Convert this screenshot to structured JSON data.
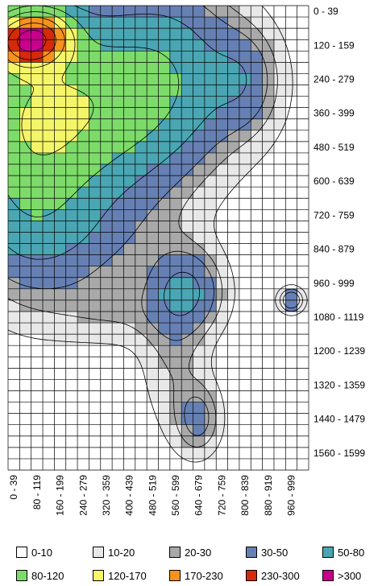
{
  "chart_data": {
    "type": "heatmap",
    "title": "",
    "xlabel": "",
    "ylabel": "",
    "x_tick_labels": [
      "0 - 39",
      "80 - 119",
      "160 - 199",
      "240 - 279",
      "320 - 359",
      "400 - 439",
      "480 - 519",
      "560 - 599",
      "640 - 679",
      "720 - 759",
      "800 - 839",
      "880 - 919",
      "960 - 999"
    ],
    "y_tick_labels": [
      "0 - 39",
      "120 - 159",
      "240 - 279",
      "360 - 399",
      "480 - 519",
      "600 - 639",
      "720 - 759",
      "840 - 879",
      "960 - 999",
      "1080 - 1119",
      "1200 - 1239",
      "1320 - 1359",
      "1440 - 1479",
      "1560 - 1599"
    ],
    "x_range": [
      0,
      1039
    ],
    "y_range": [
      0,
      1639
    ],
    "bin_size": 40,
    "grid": true,
    "legend_position": "bottom",
    "legend": [
      {
        "label": "0-10",
        "min": 0,
        "max": 10,
        "color": "#ffffff"
      },
      {
        "label": "10-20",
        "min": 10,
        "max": 20,
        "color": "#e8e8e8"
      },
      {
        "label": "20-30",
        "min": 20,
        "max": 30,
        "color": "#a9a9a9"
      },
      {
        "label": "30-50",
        "min": 30,
        "max": 50,
        "color": "#6680b3"
      },
      {
        "label": "50-80",
        "min": 50,
        "max": 80,
        "color": "#4aa6b3"
      },
      {
        "label": "80-120",
        "min": 80,
        "max": 120,
        "color": "#7ddb6a"
      },
      {
        "label": "120-170",
        "min": 120,
        "max": 170,
        "color": "#f5f56a"
      },
      {
        "label": "170-230",
        "min": 170,
        "max": 230,
        "color": "#f7921e"
      },
      {
        "label": "230-300",
        "min": 230,
        "max": 300,
        "color": "#d42a0a"
      },
      {
        "label": ">300",
        "min": 300,
        "max": null,
        "color": "#c8008c"
      }
    ],
    "hotspots": [
      {
        "x": 80,
        "y": 120,
        "peak": 280,
        "sx": 80,
        "sy": 60,
        "rot": -0.15
      },
      {
        "x": 160,
        "y": 380,
        "peak": 70,
        "sx": 240,
        "sy": 300,
        "rot": -0.4
      },
      {
        "x": 360,
        "y": 340,
        "peak": 45,
        "sx": 260,
        "sy": 180,
        "rot": 0
      },
      {
        "x": 560,
        "y": 180,
        "peak": 40,
        "sx": 160,
        "sy": 200,
        "rot": 0
      },
      {
        "x": 60,
        "y": 600,
        "peak": 45,
        "sx": 140,
        "sy": 260,
        "rot": 0
      },
      {
        "x": 620,
        "y": 1000,
        "peak": 40,
        "sx": 80,
        "sy": 90,
        "rot": 0
      },
      {
        "x": 580,
        "y": 1200,
        "peak": 18,
        "sx": 80,
        "sy": 220,
        "rot": 0
      },
      {
        "x": 660,
        "y": 1460,
        "peak": 30,
        "sx": 50,
        "sy": 80,
        "rot": 0
      },
      {
        "x": 980,
        "y": 1040,
        "peak": 45,
        "sx": 28,
        "sy": 28,
        "rot": 0
      },
      {
        "x": 820,
        "y": 260,
        "peak": 28,
        "sx": 80,
        "sy": 120,
        "rot": 0
      },
      {
        "x": 400,
        "y": 1080,
        "peak": 14,
        "sx": 180,
        "sy": 80,
        "rot": 0
      },
      {
        "x": 200,
        "y": 840,
        "peak": 14,
        "sx": 200,
        "sy": 120,
        "rot": 0
      }
    ]
  }
}
